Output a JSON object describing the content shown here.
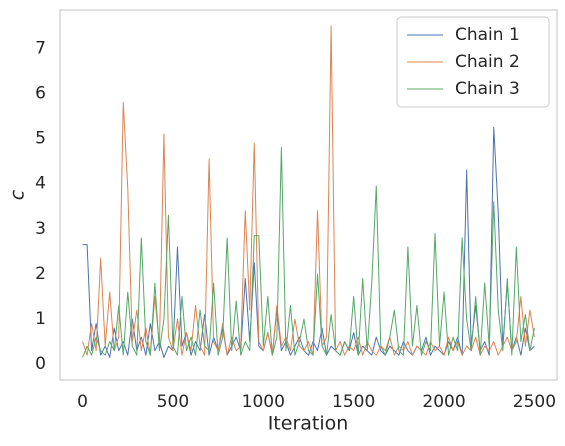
{
  "chart_data": {
    "type": "line",
    "xlabel": "Iteration",
    "ylabel": "c",
    "x": [
      0,
      25,
      50,
      75,
      100,
      125,
      150,
      175,
      200,
      225,
      250,
      275,
      300,
      325,
      350,
      375,
      400,
      425,
      450,
      475,
      500,
      525,
      550,
      575,
      600,
      625,
      650,
      675,
      700,
      725,
      750,
      775,
      800,
      825,
      850,
      875,
      900,
      925,
      950,
      975,
      1000,
      1025,
      1050,
      1075,
      1100,
      1125,
      1150,
      1175,
      1200,
      1225,
      1250,
      1275,
      1300,
      1325,
      1350,
      1375,
      1400,
      1425,
      1450,
      1475,
      1500,
      1525,
      1550,
      1575,
      1600,
      1625,
      1650,
      1675,
      1700,
      1725,
      1750,
      1775,
      1800,
      1825,
      1850,
      1875,
      1900,
      1925,
      1950,
      1975,
      2000,
      2025,
      2050,
      2075,
      2100,
      2125,
      2150,
      2175,
      2200,
      2225,
      2250,
      2275,
      2300,
      2325,
      2350,
      2375,
      2400,
      2425,
      2450,
      2475,
      2500
    ],
    "series": [
      {
        "name": "Chain 1",
        "color": "#4c72b0",
        "values": [
          2.65,
          2.65,
          0.3,
          0.9,
          0.2,
          0.4,
          0.15,
          0.8,
          0.3,
          0.5,
          0.2,
          1.0,
          0.3,
          0.6,
          0.2,
          0.9,
          0.3,
          0.5,
          0.15,
          0.4,
          0.3,
          2.6,
          0.4,
          0.7,
          0.2,
          0.5,
          0.3,
          1.1,
          0.2,
          0.6,
          0.3,
          0.8,
          0.2,
          0.4,
          0.6,
          0.3,
          1.9,
          0.5,
          2.25,
          0.4,
          0.3,
          0.7,
          0.2,
          1.2,
          0.3,
          0.5,
          0.2,
          0.4,
          0.6,
          0.3,
          0.2,
          0.5,
          0.3,
          0.8,
          0.2,
          0.4,
          0.3,
          0.2,
          0.5,
          0.3,
          0.7,
          0.2,
          0.4,
          0.3,
          0.2,
          0.6,
          0.3,
          0.2,
          0.4,
          0.3,
          0.2,
          0.5,
          0.3,
          0.2,
          0.4,
          0.3,
          0.6,
          0.2,
          0.4,
          0.3,
          0.2,
          0.5,
          0.3,
          0.6,
          0.2,
          4.3,
          0.4,
          1.3,
          0.3,
          0.5,
          0.2,
          5.25,
          3.35,
          0.4,
          1.8,
          0.3,
          0.6,
          0.2,
          0.8,
          0.3,
          0.4
        ]
      },
      {
        "name": "Chain 2",
        "color": "#dd8452",
        "values": [
          0.5,
          0.2,
          0.9,
          0.3,
          2.35,
          0.4,
          1.6,
          0.3,
          0.6,
          5.8,
          3.9,
          0.5,
          1.2,
          0.3,
          0.8,
          0.2,
          1.5,
          0.4,
          5.1,
          0.6,
          0.3,
          1.0,
          0.2,
          0.7,
          0.3,
          1.3,
          0.4,
          0.2,
          4.55,
          0.5,
          0.3,
          0.9,
          0.2,
          0.6,
          0.3,
          0.4,
          3.4,
          1.2,
          4.9,
          0.5,
          0.3,
          0.7,
          0.2,
          1.3,
          0.4,
          0.6,
          0.3,
          1.0,
          0.4,
          0.3,
          0.5,
          0.2,
          3.4,
          0.4,
          0.6,
          7.5,
          0.3,
          0.5,
          0.2,
          0.4,
          0.3,
          0.6,
          0.2,
          0.5,
          0.3,
          0.2,
          0.4,
          0.3,
          0.6,
          0.2,
          0.4,
          0.3,
          0.5,
          0.2,
          0.4,
          0.3,
          0.2,
          0.5,
          0.3,
          0.4,
          0.2,
          0.6,
          0.3,
          0.5,
          0.2,
          0.4,
          0.3,
          0.6,
          0.2,
          0.4,
          0.3,
          0.5,
          0.2,
          0.4,
          0.6,
          0.3,
          0.5,
          1.5,
          0.4,
          1.2,
          0.6
        ]
      },
      {
        "name": "Chain 3",
        "color": "#55a868",
        "values": [
          0.15,
          0.4,
          0.2,
          0.6,
          0.3,
          0.2,
          0.5,
          0.3,
          1.3,
          0.2,
          1.6,
          0.4,
          0.2,
          2.8,
          0.5,
          0.2,
          1.8,
          0.3,
          1.0,
          3.3,
          0.4,
          0.2,
          1.5,
          0.3,
          0.6,
          0.2,
          1.2,
          0.4,
          0.3,
          1.8,
          0.2,
          0.6,
          2.8,
          0.3,
          1.4,
          0.2,
          0.5,
          0.3,
          2.85,
          2.85,
          0.4,
          1.5,
          0.2,
          0.6,
          4.8,
          0.3,
          1.3,
          0.2,
          0.5,
          1.0,
          0.3,
          0.2,
          2.0,
          0.4,
          0.2,
          1.1,
          0.3,
          0.2,
          0.5,
          0.3,
          1.5,
          0.2,
          1.9,
          0.3,
          1.8,
          3.95,
          0.4,
          0.2,
          0.6,
          1.2,
          0.3,
          0.2,
          2.6,
          0.4,
          1.3,
          0.2,
          0.5,
          0.3,
          2.9,
          0.4,
          1.6,
          0.2,
          0.6,
          0.3,
          2.8,
          1.0,
          0.3,
          1.5,
          0.2,
          1.8,
          0.4,
          3.6,
          1.2,
          0.3,
          1.9,
          0.2,
          2.6,
          0.5,
          1.1,
          0.3,
          0.8
        ]
      }
    ],
    "xlim": [
      -125,
      2625
    ],
    "xticks": [
      0,
      500,
      1000,
      1500,
      2000,
      2500
    ],
    "ylim": [
      -0.35,
      7.85
    ],
    "yticks": [
      0,
      1,
      2,
      3,
      4,
      5,
      6,
      7
    ],
    "grid": false,
    "legend": "upper right"
  }
}
